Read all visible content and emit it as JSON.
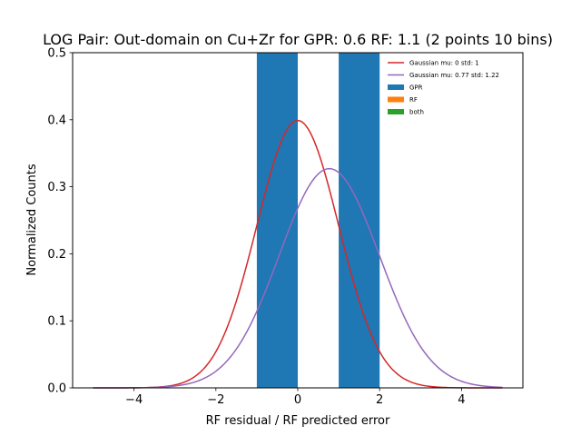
{
  "chart_data": {
    "type": "bar",
    "title": "LOG Pair: Out-domain on Cu+Zr for GPR: 0.6 RF: 1.1 (2 points 10 bins)",
    "xlabel": "RF residual / RF predicted error",
    "ylabel": "Normalized Counts",
    "xlim": [
      -5.5,
      5.5
    ],
    "ylim": [
      0,
      0.5
    ],
    "xticks": [
      -4,
      -2,
      0,
      2,
      4
    ],
    "xtick_labels": [
      "−4",
      "−2",
      "0",
      "2",
      "4"
    ],
    "yticks": [
      0.0,
      0.1,
      0.2,
      0.3,
      0.4,
      0.5
    ],
    "ytick_labels": [
      "0.0",
      "0.1",
      "0.2",
      "0.3",
      "0.4",
      "0.5"
    ],
    "grid": false,
    "legend_position": "top-right",
    "bars": [
      {
        "series": "GPR",
        "x0": -1,
        "x1": 0,
        "value": 0.5
      },
      {
        "series": "GPR",
        "x0": 1,
        "x1": 2,
        "value": 0.5
      }
    ],
    "curves": [
      {
        "name": "Gaussian mu: 0 std: 1",
        "mu": 0,
        "std": 1,
        "x_range": [
          -5,
          5
        ],
        "color": "#d62728"
      },
      {
        "name": "Gaussian mu: 0.77 std: 1.22",
        "mu": 0.77,
        "std": 1.22,
        "x_range": [
          -5,
          5
        ],
        "color": "#9467bd"
      }
    ],
    "legend": [
      {
        "label": "Gaussian mu: 0 std: 1",
        "kind": "line",
        "color": "#d62728"
      },
      {
        "label": "Gaussian mu: 0.77 std: 1.22",
        "kind": "line",
        "color": "#9467bd"
      },
      {
        "label": "GPR",
        "kind": "patch",
        "color": "#1f77b4"
      },
      {
        "label": "RF",
        "kind": "patch",
        "color": "#ff7f0e"
      },
      {
        "label": "both",
        "kind": "patch",
        "color": "#2ca02c"
      }
    ]
  }
}
